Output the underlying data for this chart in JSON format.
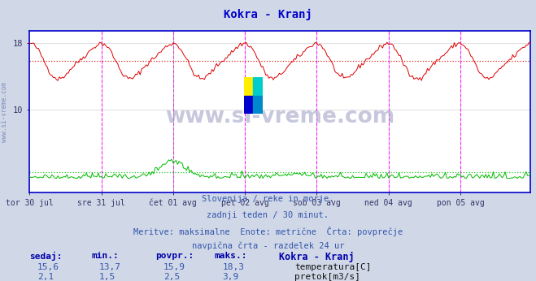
{
  "title": "Kokra - Kranj",
  "title_color": "#0000cc",
  "bg_color": "#d0d8e8",
  "plot_bg_color": "#ffffff",
  "grid_color": "#c8c8c8",
  "x_labels": [
    "tor 30 jul",
    "sre 31 jul",
    "čet 01 avg",
    "pet 02 avg",
    "sob 03 avg",
    "ned 04 avg",
    "pon 05 avg"
  ],
  "y_ticks": [
    10,
    18
  ],
  "y_min": 0,
  "y_max": 19.5,
  "temp_color": "#dd0000",
  "flow_color": "#00bb00",
  "avg_temp": 15.9,
  "avg_flow": 2.5,
  "subtitle_lines": [
    "Slovenija / reke in morje.",
    "zadnji teden / 30 minut.",
    "Meritve: maksimalne  Enote: metrične  Črta: povprečje",
    "navpična črta - razdelek 24 ur"
  ],
  "table_headers": [
    "sedaj:",
    "min.:",
    "povpr.:",
    "maks.:",
    "Kokra - Kranj"
  ],
  "row1": [
    "15,6",
    "13,7",
    "15,9",
    "18,3"
  ],
  "row2": [
    "2,1",
    "1,5",
    "2,5",
    "3,9"
  ],
  "legend_labels": [
    "temperatura[C]",
    "pretok[m3/s]"
  ],
  "watermark": "www.si-vreme.com",
  "watermark_color": "#aaaacc",
  "num_points": 336,
  "vline_color": "#ff00ff",
  "axis_line_color": "#0000cc",
  "side_label_color": "#4466aa",
  "text_color": "#3355aa",
  "header_bold_color": "#0000aa",
  "val_color": "#3355aa"
}
